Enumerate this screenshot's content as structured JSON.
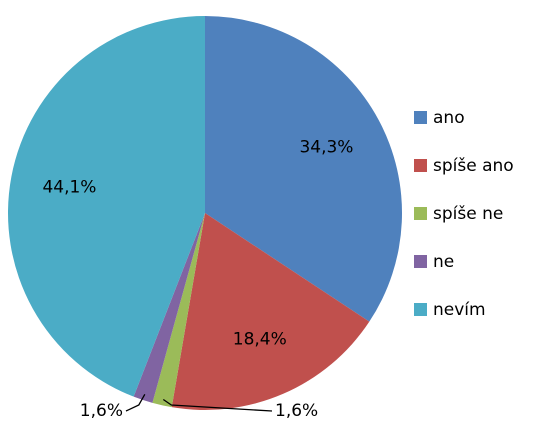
{
  "chart_data": {
    "type": "pie",
    "categories": [
      "ano",
      "spíše ano",
      "spíše ne",
      "ne",
      "nevím"
    ],
    "values": [
      34.3,
      18.4,
      1.6,
      1.6,
      44.1
    ],
    "value_labels": [
      "34,3%",
      "18,4%",
      "1,6%",
      "1,6%",
      "44,1%"
    ],
    "colors": [
      "#4f81bd",
      "#c0504d",
      "#9bbb59",
      "#8064a2",
      "#4bacc6"
    ],
    "legend": "right"
  }
}
